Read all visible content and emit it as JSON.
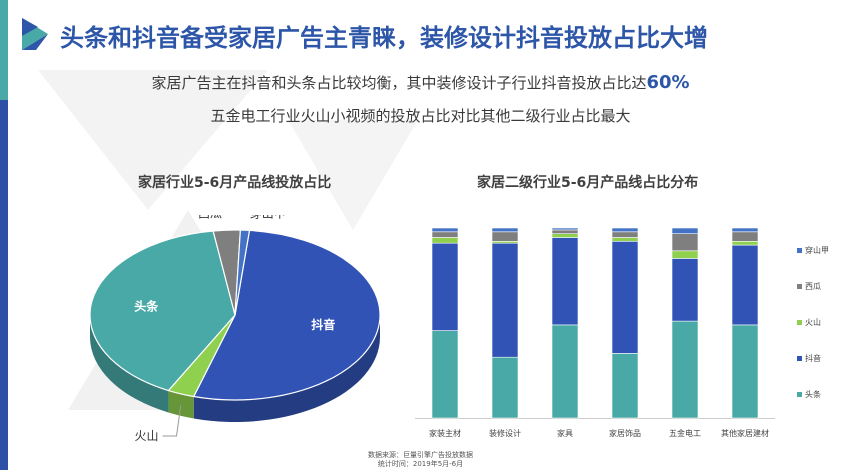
{
  "page": {
    "title": "头条和抖音备受家居广告主青睐，装修设计抖音投放占比大增",
    "subtitle_line1_prefix": "家居广告主在抖音和头条占比较均衡，其中装修设计子行业抖音投放占比达",
    "subtitle_line1_highlight": "60%",
    "subtitle_line2": "五金电工行业火山小视频的投放占比对比其他二级行业占比最大",
    "source_line1": "数据来源：巨量引擎广告投放数据",
    "source_line2": "统计时间：2019年5月-6月"
  },
  "colors": {
    "toutiao": "#48a9a6",
    "douyin": "#3153b5",
    "huoshan": "#8fd14f",
    "xigua": "#7f7f7f",
    "chuanshanjia": "#4472c4",
    "title": "#2d56a8"
  },
  "chart_data": [
    {
      "type": "pie",
      "title": "家居行业5-6月产品线投放占比",
      "three_d": true,
      "slices": [
        {
          "label": "抖音",
          "value": 53
        },
        {
          "label": "火山",
          "value": 3
        },
        {
          "label": "头条",
          "value": 40
        },
        {
          "label": "西瓜",
          "value": 3
        },
        {
          "label": "穿山甲",
          "value": 1
        }
      ]
    },
    {
      "type": "bar",
      "stacked": true,
      "percent": true,
      "title": "家居二级行业5-6月产品线占比分布",
      "categories": [
        "家装主材",
        "装修设计",
        "家具",
        "家居饰品",
        "五金电工",
        "其他家居建材"
      ],
      "series": [
        {
          "name": "头条",
          "values": [
            46,
            32,
            49,
            34,
            51,
            49
          ]
        },
        {
          "name": "抖音",
          "values": [
            46,
            60,
            46,
            59,
            33,
            42
          ]
        },
        {
          "name": "火山",
          "values": [
            3,
            1,
            2,
            2,
            4,
            2
          ]
        },
        {
          "name": "西瓜",
          "values": [
            3,
            5,
            2,
            3,
            9,
            5
          ]
        },
        {
          "name": "穿山甲",
          "values": [
            2,
            2,
            1,
            2,
            3,
            2
          ]
        }
      ],
      "legend_position": "right",
      "legend_order": [
        "穿山甲",
        "西瓜",
        "火山",
        "抖音",
        "头条"
      ],
      "ylim": [
        0,
        100
      ],
      "grid": false
    }
  ]
}
